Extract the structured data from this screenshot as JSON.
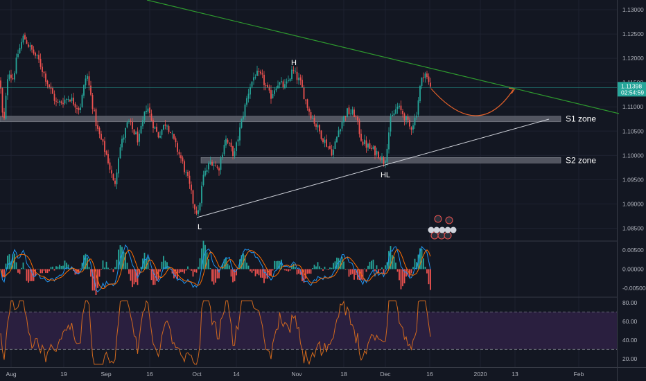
{
  "chart_data": [
    {
      "type": "candlestick",
      "x_ticks": [
        "Aug",
        "19",
        "Sep",
        "16",
        "Oct",
        "14",
        "Nov",
        "18",
        "Dec",
        "16",
        "2020",
        "13",
        "Feb"
      ],
      "y_ticks": [
        "1.13000",
        "1.12500",
        "1.12000",
        "1.11500",
        "1.11000",
        "1.10500",
        "1.10000",
        "1.09500",
        "1.09000",
        "1.08500"
      ],
      "ylim": [
        1.0825,
        1.132
      ],
      "price_path": [
        [
          0,
          1.1155
        ],
        [
          5,
          1.1055
        ],
        [
          12,
          1.118
        ],
        [
          18,
          1.1155
        ],
        [
          26,
          1.121
        ],
        [
          34,
          1.1245
        ],
        [
          44,
          1.122
        ],
        [
          56,
          1.1195
        ],
        [
          70,
          1.1145
        ],
        [
          82,
          1.1105
        ],
        [
          100,
          1.112
        ],
        [
          115,
          1.1095
        ],
        [
          125,
          1.117
        ],
        [
          132,
          1.1115
        ],
        [
          140,
          1.1055
        ],
        [
          155,
          1.0995
        ],
        [
          165,
          1.0935
        ],
        [
          172,
          1.101
        ],
        [
          185,
          1.107
        ],
        [
          200,
          1.103
        ],
        [
          212,
          1.1105
        ],
        [
          218,
          1.1075
        ],
        [
          228,
          1.104
        ],
        [
          240,
          1.107
        ],
        [
          252,
          1.1025
        ],
        [
          262,
          1.099
        ],
        [
          272,
          1.0945
        ],
        [
          280,
          1.0895
        ],
        [
          286,
          1.088
        ],
        [
          293,
          1.0955
        ],
        [
          305,
          1.099
        ],
        [
          315,
          1.097
        ],
        [
          325,
          1.1035
        ],
        [
          338,
          1.1
        ],
        [
          350,
          1.108
        ],
        [
          360,
          1.114
        ],
        [
          368,
          1.1168
        ],
        [
          378,
          1.116
        ],
        [
          390,
          1.112
        ],
        [
          400,
          1.115
        ],
        [
          412,
          1.114
        ],
        [
          422,
          1.1175
        ],
        [
          433,
          1.115
        ],
        [
          445,
          1.1095
        ],
        [
          455,
          1.1065
        ],
        [
          468,
          1.103
        ],
        [
          480,
          1.1005
        ],
        [
          490,
          1.106
        ],
        [
          500,
          1.109
        ],
        [
          512,
          1.1085
        ],
        [
          522,
          1.103
        ],
        [
          533,
          1.1015
        ],
        [
          545,
          1.1005
        ],
        [
          555,
          1.0985
        ],
        [
          563,
          1.107
        ],
        [
          573,
          1.11
        ],
        [
          582,
          1.1085
        ],
        [
          592,
          1.1055
        ],
        [
          600,
          1.108
        ],
        [
          606,
          1.114
        ],
        [
          612,
          1.1175
        ],
        [
          618,
          1.115
        ],
        [
          622,
          1.114
        ]
      ],
      "current_price": "1.11398",
      "countdown": "02:54:59",
      "zones": [
        {
          "label": "S1 zone",
          "price": 1.1075
        },
        {
          "label": "S2 zone",
          "price": 1.099
        }
      ],
      "pattern_labels": [
        "L",
        "H",
        "HL"
      ],
      "macd": {
        "y_ticks": [
          "0.00500",
          "0.00000",
          "-0.00500"
        ],
        "ylim": [
          -0.0072,
          0.0072
        ]
      },
      "rsi": {
        "y_ticks": [
          "80.00",
          "60.00",
          "40.00",
          "20.00"
        ],
        "ylim": [
          11,
          85
        ],
        "bands": [
          70,
          30
        ]
      },
      "colors": {
        "background": "#131722",
        "up": "#26a69a",
        "down": "#ef5350",
        "resistance": "#2e9a2e",
        "projection": "#e0602a",
        "rsi_line": "#d2691e",
        "rsi_band": "#2a1f3f",
        "macd_line": "#2196f3",
        "signal_line": "#ff6d00"
      }
    }
  ]
}
